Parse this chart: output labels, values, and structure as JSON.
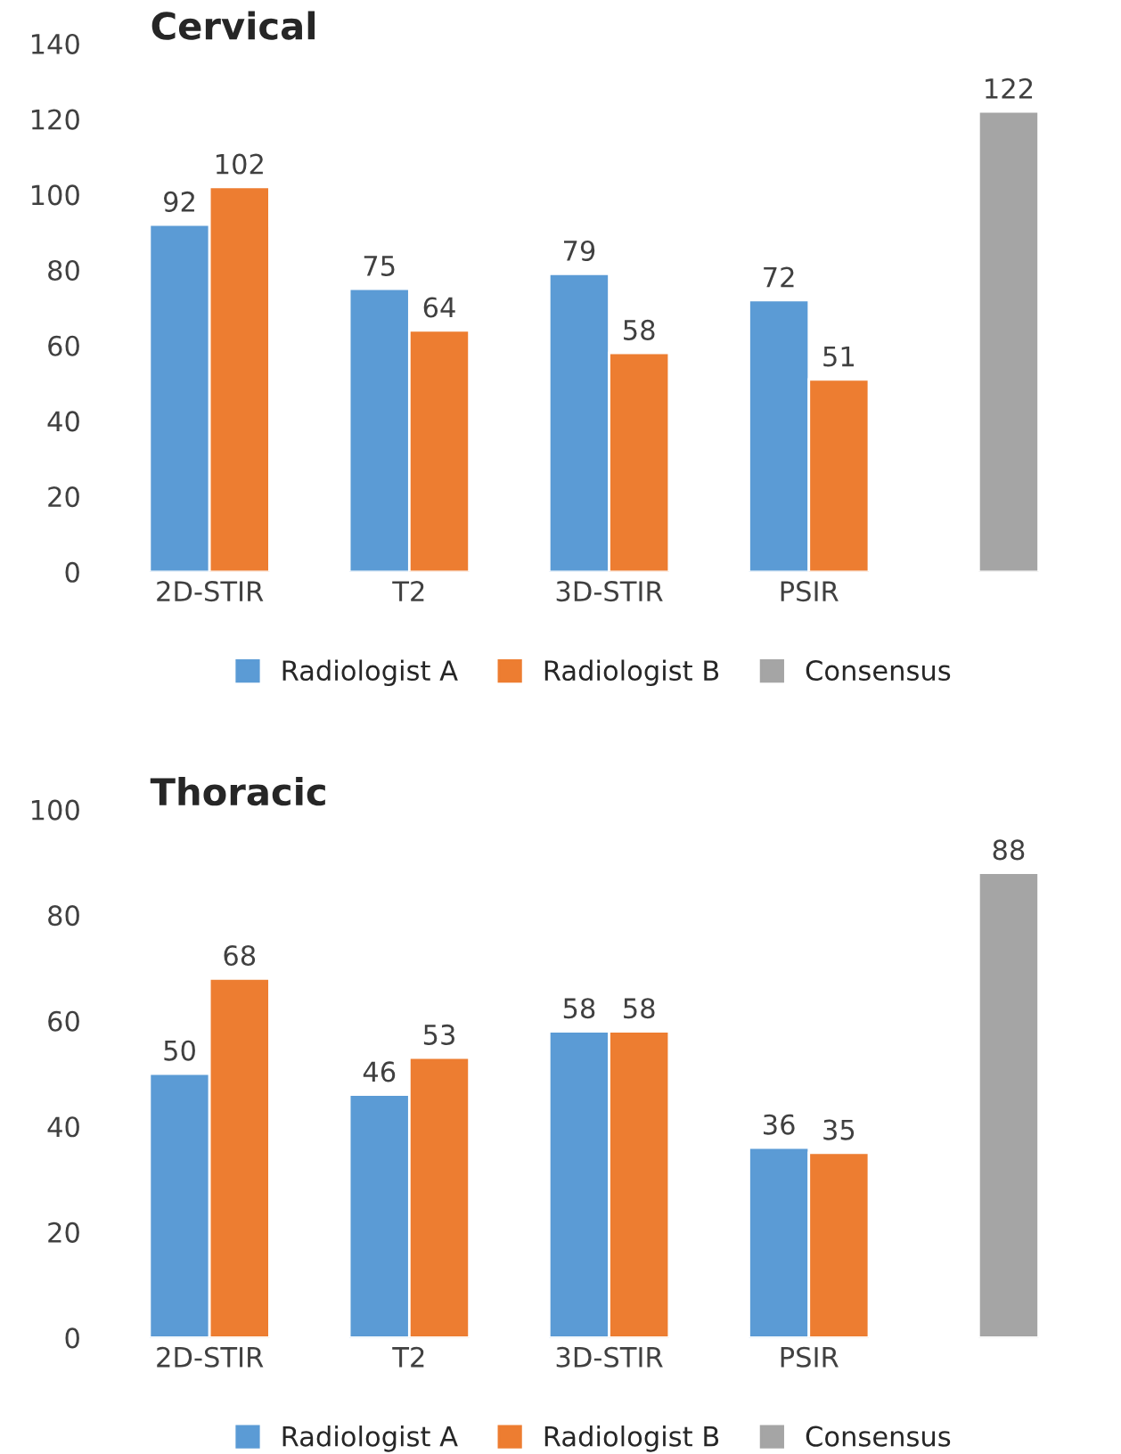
{
  "chart_data": [
    {
      "type": "bar",
      "title": "Cervical",
      "categories": [
        "2D-STIR",
        "T2",
        "3D-STIR",
        "PSIR",
        null
      ],
      "series": [
        {
          "name": "Radiologist A",
          "color": "#5b9bd5",
          "values": [
            92,
            75,
            79,
            72,
            null
          ]
        },
        {
          "name": "Radiologist B",
          "color": "#ed7d31",
          "values": [
            102,
            64,
            58,
            51,
            null
          ]
        },
        {
          "name": "Consensus",
          "color": "#a5a5a5",
          "values": [
            null,
            null,
            null,
            null,
            122
          ]
        }
      ],
      "ylim": [
        0,
        140
      ],
      "yticks": [
        0,
        20,
        40,
        60,
        80,
        100,
        120,
        140
      ],
      "data_labels": true,
      "grid": false,
      "legend": "bottom"
    },
    {
      "type": "bar",
      "title": "Thoracic",
      "categories": [
        "2D-STIR",
        "T2",
        "3D-STIR",
        "PSIR",
        null
      ],
      "series": [
        {
          "name": "Radiologist A",
          "color": "#5b9bd5",
          "values": [
            50,
            46,
            58,
            36,
            null
          ]
        },
        {
          "name": "Radiologist B",
          "color": "#ed7d31",
          "values": [
            68,
            53,
            58,
            35,
            null
          ]
        },
        {
          "name": "Consensus",
          "color": "#a5a5a5",
          "values": [
            null,
            null,
            null,
            null,
            88
          ]
        }
      ],
      "ylim": [
        0,
        100
      ],
      "yticks": [
        0,
        20,
        40,
        60,
        80,
        100
      ],
      "data_labels": true,
      "grid": false,
      "legend": "bottom"
    }
  ]
}
